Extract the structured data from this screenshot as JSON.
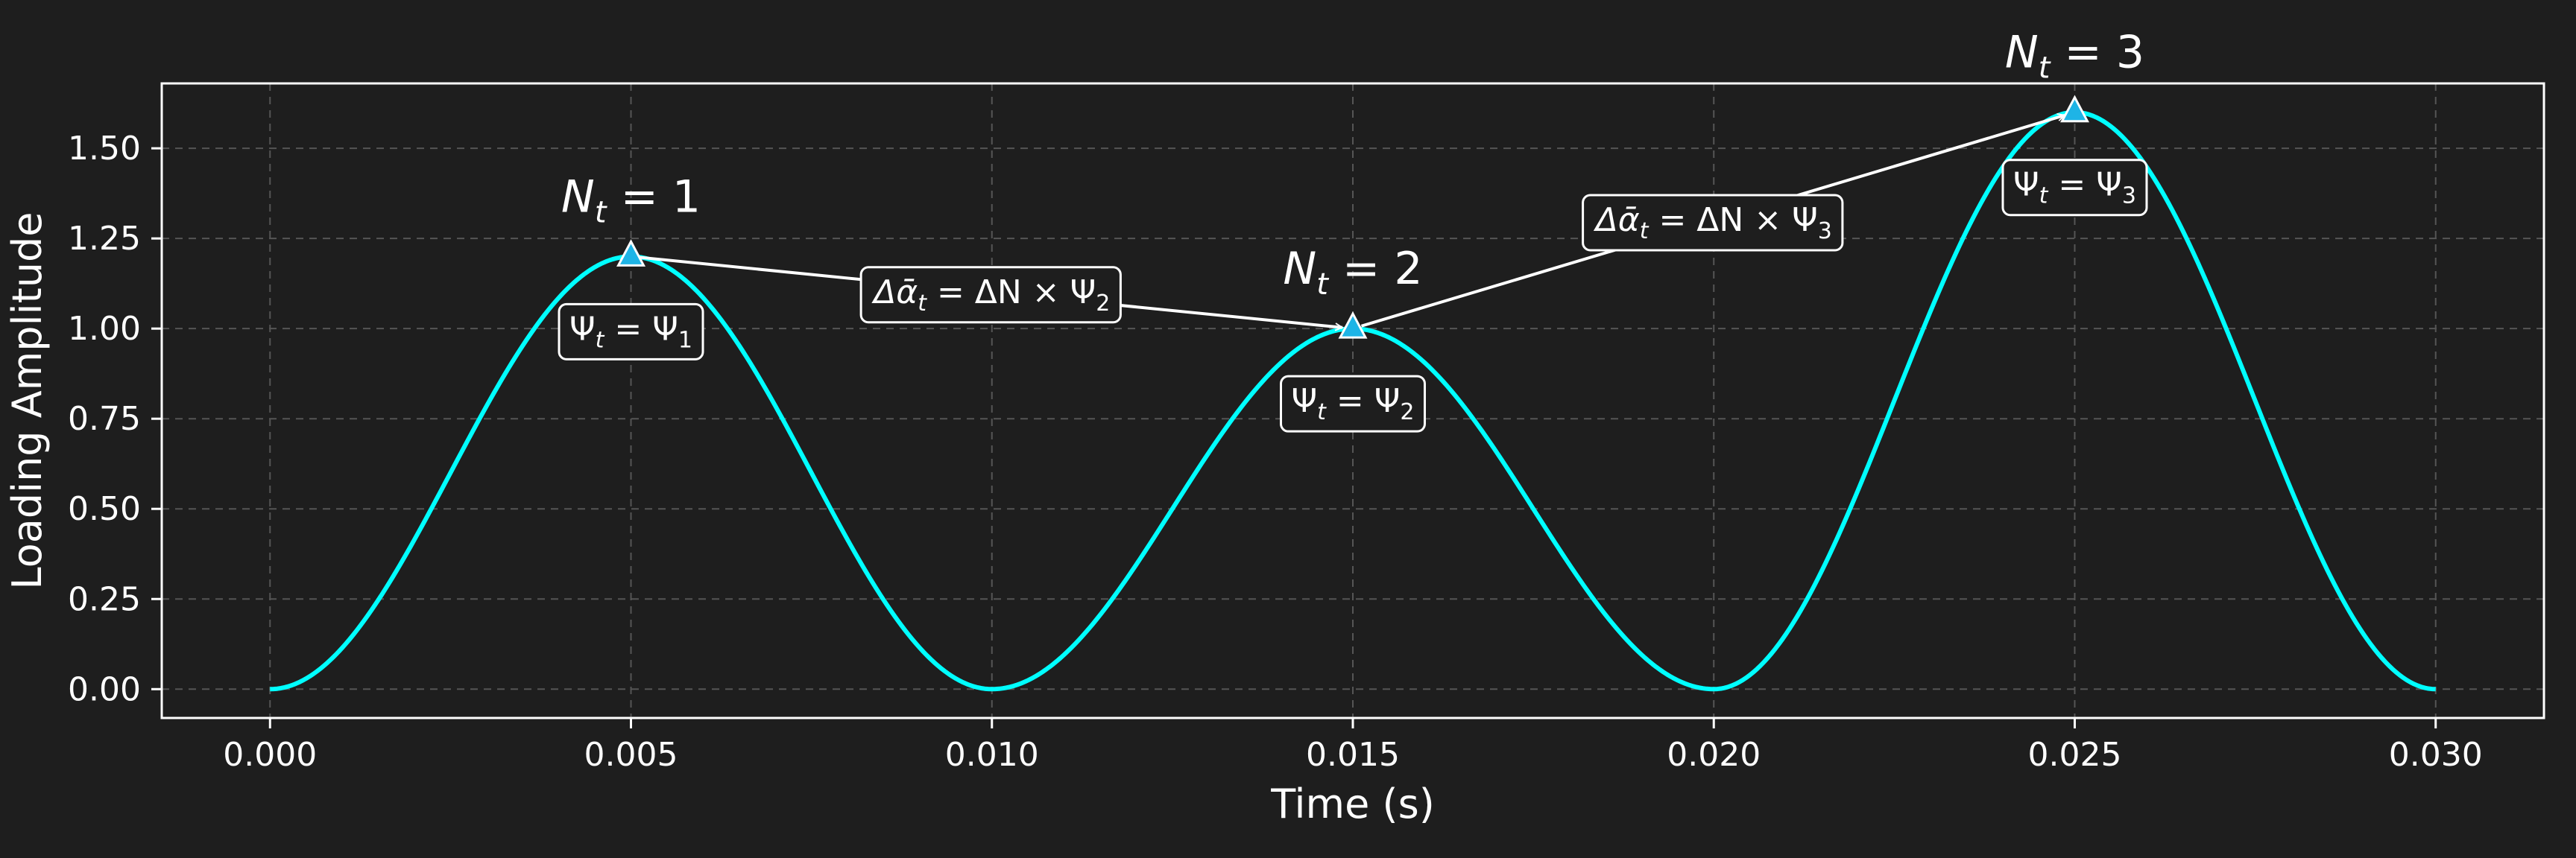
{
  "chart_data": {
    "type": "line",
    "title": "",
    "xlabel": "Time (s)",
    "ylabel": "Loading Amplitude",
    "xlim": [
      -0.0015,
      0.0315
    ],
    "ylim": [
      -0.08,
      1.68
    ],
    "x_ticks": [
      "0.000",
      "0.005",
      "0.010",
      "0.015",
      "0.020",
      "0.025",
      "0.030"
    ],
    "y_ticks": [
      "0.00",
      "0.25",
      "0.50",
      "0.75",
      "1.00",
      "1.25",
      "1.50"
    ],
    "grid": true,
    "series": [
      {
        "color": "#00ffff",
        "function": "piecewise cycles: amplitude * sin^2(pi * (t - t0) / 0.01)",
        "cycles": [
          {
            "t_start": 0.0,
            "t_end": 0.01,
            "peak_time": 0.005,
            "amplitude": 1.2
          },
          {
            "t_start": 0.01,
            "t_end": 0.02,
            "peak_time": 0.015,
            "amplitude": 1.0
          },
          {
            "t_start": 0.02,
            "t_end": 0.03,
            "peak_time": 0.025,
            "amplitude": 1.6
          }
        ]
      }
    ],
    "peaks": [
      {
        "x": 0.005,
        "y": 1.2,
        "label": {
          "base": "N",
          "sub": "t",
          "rest": " = 1"
        },
        "box": {
          "lhs": "Ψ",
          "lsub": "t",
          "rhs": "Ψ",
          "rsub": "1"
        }
      },
      {
        "x": 0.015,
        "y": 1.0,
        "label": {
          "base": "N",
          "sub": "t",
          "rest": " = 2"
        },
        "box": {
          "lhs": "Ψ",
          "lsub": "t",
          "rhs": "Ψ",
          "rsub": "2"
        }
      },
      {
        "x": 0.025,
        "y": 1.6,
        "label": {
          "base": "N",
          "sub": "t",
          "rest": " = 3"
        },
        "box": {
          "lhs": "Ψ",
          "lsub": "t",
          "rhs": "Ψ",
          "rsub": "3"
        }
      }
    ],
    "transitions": [
      {
        "from": 0,
        "to": 1,
        "text": {
          "pre": "Δᾱ",
          "sub": "t",
          "mid": " = ΔN × Ψ",
          "sub2": "2"
        }
      },
      {
        "from": 1,
        "to": 2,
        "text": {
          "pre": "Δᾱ",
          "sub": "t",
          "mid": " = ΔN × Ψ",
          "sub2": "3"
        }
      }
    ],
    "colors": {
      "background": "#1e1e1e",
      "line": "#00ffff",
      "marker": "#1eb4e6",
      "grid": "#555555",
      "text": "#ffffff"
    }
  }
}
